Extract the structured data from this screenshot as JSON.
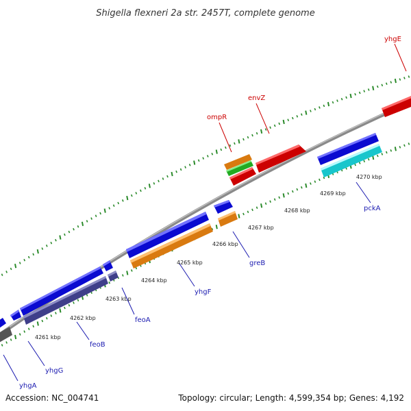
{
  "title": "Shigella flexneri 2a str. 2457T, complete genome",
  "footer": {
    "accession": "Accession: NC_004741",
    "summary": "Topology: circular; Length: 4,599,354 bp; Genes: 4,192"
  },
  "colors": {
    "backbone": "#888888",
    "tick": "#2a8a2a",
    "blue_gene": "#0a0adf",
    "purple_gene": "#4a4a9a",
    "orange_gene": "#f7921e",
    "red_gene": "#ee1111",
    "cyan_gene": "#22e8ee",
    "green_gene": "#33bb33",
    "gray_gene": "#666666",
    "label_blue": "#1a1ab0",
    "label_red": "#cc0000"
  },
  "scale_labels": [
    "4261 kbp",
    "4262 kbp",
    "4263 kbp",
    "4264 kbp",
    "4265 kbp",
    "4266 kbp",
    "4267 kbp",
    "4268 kbp",
    "4269 kbp",
    "4270 kbp"
  ],
  "gene_labels": {
    "yhgA": "yhgA",
    "yhgG": "yhgG",
    "feoB": "feoB",
    "feoA": "feoA",
    "yhgF": "yhgF",
    "greB": "greB",
    "pckA": "pckA",
    "ompR": "ompR",
    "envZ": "envZ",
    "yhgE": "yhgE"
  }
}
